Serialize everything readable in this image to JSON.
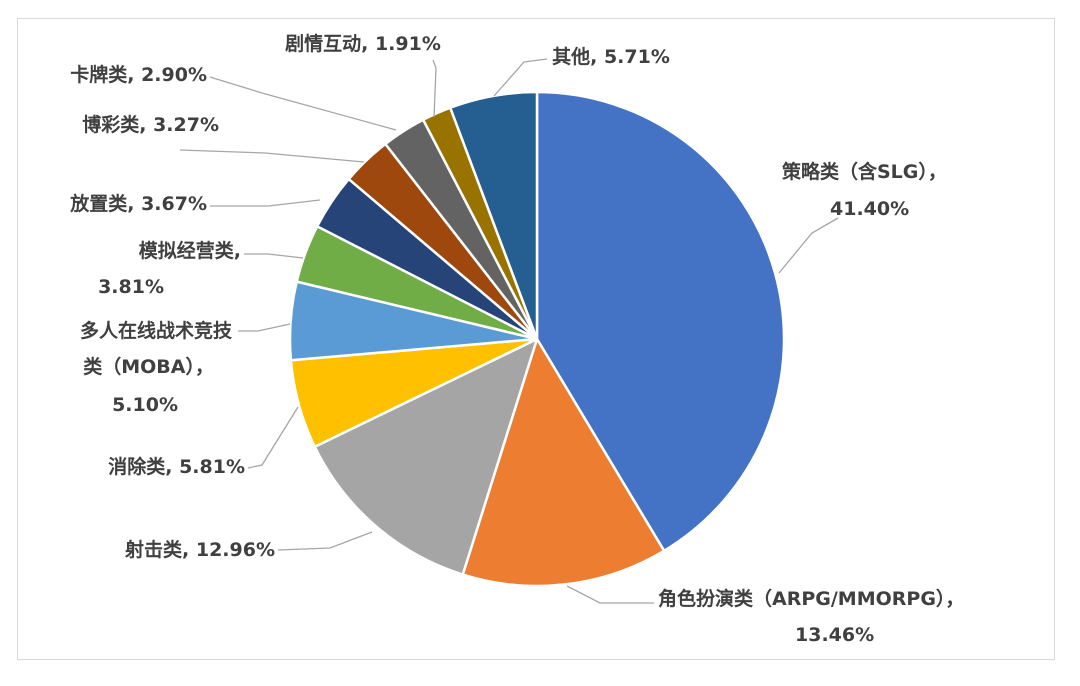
{
  "chart_data": {
    "type": "pie",
    "title": "",
    "start_angle_deg": 0,
    "direction": "clockwise",
    "slices": [
      {
        "name": "策略类（含SLG）",
        "value": 41.4,
        "pct_label": "41.40%",
        "label_lines": [
          "策略类（含SLG），",
          "41.40%"
        ],
        "color": "#4472c4"
      },
      {
        "name": "角色扮演类（ARPG/MMORPG）",
        "value": 13.46,
        "pct_label": "13.46%",
        "label_lines": [
          "角色扮演类（ARPG/MMORPG），",
          "13.46%"
        ],
        "color": "#ed7d31"
      },
      {
        "name": "射击类",
        "value": 12.96,
        "pct_label": "12.96%",
        "label_lines": [
          "射击类, 12.96%"
        ],
        "color": "#a5a5a5"
      },
      {
        "name": "消除类",
        "value": 5.81,
        "pct_label": "5.81%",
        "label_lines": [
          "消除类, 5.81%"
        ],
        "color": "#ffc000"
      },
      {
        "name": "多人在线战术竞技类（MOBA）",
        "value": 5.1,
        "pct_label": "5.10%",
        "label_lines": [
          "多人在线战术竞技",
          "类（MOBA），",
          "5.10%"
        ],
        "color": "#5b9bd5"
      },
      {
        "name": "模拟经营类",
        "value": 3.81,
        "pct_label": "3.81%",
        "label_lines": [
          "模拟经营类,",
          "3.81%"
        ],
        "color": "#70ad47"
      },
      {
        "name": "放置类",
        "value": 3.67,
        "pct_label": "3.67%",
        "label_lines": [
          "放置类, 3.67%"
        ],
        "color": "#264478"
      },
      {
        "name": "博彩类",
        "value": 3.27,
        "pct_label": "3.27%",
        "label_lines": [
          "博彩类, 3.27%"
        ],
        "color": "#9e480e"
      },
      {
        "name": "卡牌类",
        "value": 2.9,
        "pct_label": "2.90%",
        "label_lines": [
          "卡牌类, 2.90%"
        ],
        "color": "#636363"
      },
      {
        "name": "剧情互动",
        "value": 1.91,
        "pct_label": "1.91%",
        "label_lines": [
          "剧情互动, 1.91%"
        ],
        "color": "#997300"
      },
      {
        "name": "其他",
        "value": 5.71,
        "pct_label": "5.71%",
        "label_lines": [
          "其他, 5.71%"
        ],
        "color": "#255e91"
      }
    ]
  }
}
